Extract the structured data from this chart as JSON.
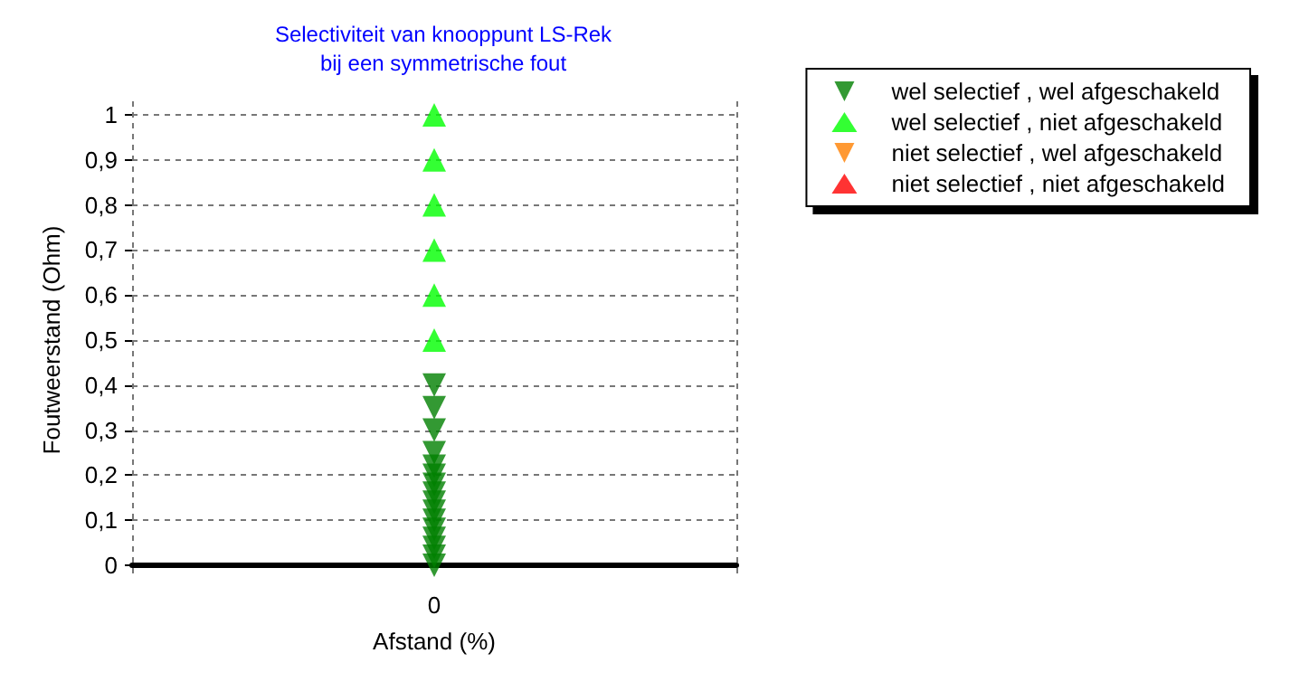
{
  "chart_data": {
    "type": "scatter",
    "title": "Selectiviteit van knooppunt LS-Rek",
    "subtitle": "bij een symmetrische fout",
    "xlabel": "Afstand (%)",
    "ylabel": "Foutweerstand (Ohm)",
    "categories": [
      "0"
    ],
    "ylim": [
      -0.03,
      1.03
    ],
    "yticks": [
      0,
      {
        "value": 0.1,
        "label": "0,1"
      },
      {
        "value": 0.2,
        "label": "0,2"
      },
      {
        "value": 0.3,
        "label": "0,3"
      },
      {
        "value": 0.4,
        "label": "0,4"
      },
      {
        "value": 0.5,
        "label": "0,5"
      },
      {
        "value": 0.6,
        "label": "0,6"
      },
      {
        "value": 0.7,
        "label": "0,7"
      },
      {
        "value": 0.8,
        "label": "0,8"
      },
      {
        "value": 0.9,
        "label": "0,9"
      },
      1
    ],
    "grid": true,
    "legend": "top right",
    "series": [
      {
        "name": "wel selectief , wel afgeschakeld",
        "color": "#007f00",
        "marker": "triangle-down",
        "x": [
          "0",
          "0",
          "0",
          "0",
          "0",
          "0",
          "0",
          "0",
          "0",
          "0",
          "0",
          "0",
          "0",
          "0",
          "0",
          "0"
        ],
        "values": [
          0.4,
          0.35,
          0.3,
          0.25,
          0.22,
          0.2,
          0.18,
          0.16,
          0.14,
          0.12,
          0.1,
          0.08,
          0.06,
          0.04,
          0.02,
          0
        ]
      },
      {
        "name": "wel selectief , niet afgeschakeld",
        "color": "#00ff00",
        "marker": "triangle",
        "x": [
          "0",
          "0",
          "0",
          "0",
          "0",
          "0"
        ],
        "values": [
          1,
          0.9,
          0.8,
          0.7,
          0.6,
          0.5
        ]
      },
      {
        "name": "niet selectief , wel afgeschakeld",
        "color": "#ff8000",
        "marker": "triangle-down",
        "values": [
          null
        ]
      },
      {
        "name": "niet selectief , niet afgeschakeld",
        "color": "#ff0000",
        "marker": "triangle",
        "values": [
          null
        ]
      }
    ]
  }
}
